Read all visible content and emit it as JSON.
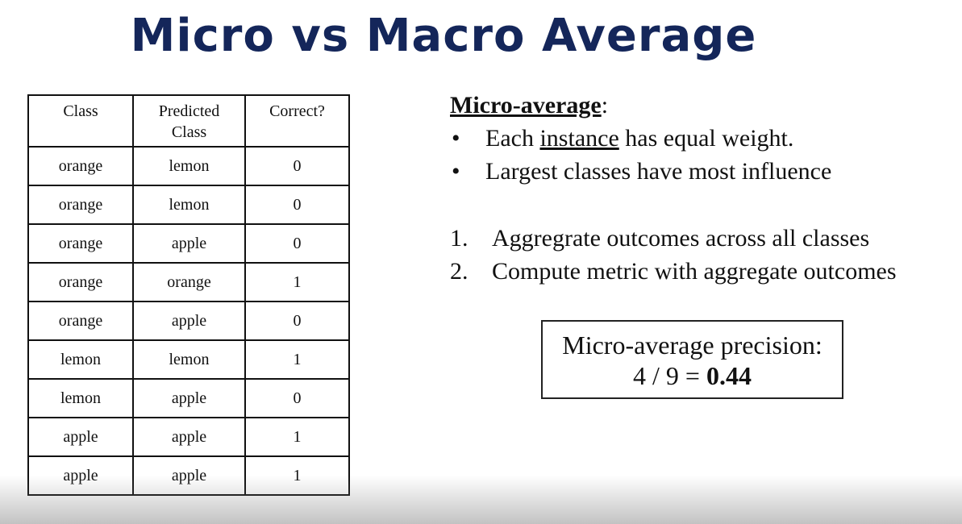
{
  "title": "Micro vs Macro Average",
  "table": {
    "headers": {
      "class_col": "Class",
      "predicted_line1": "Predicted",
      "predicted_line2": "Class",
      "correct_col": "Correct?"
    },
    "rows": [
      {
        "class": "orange",
        "predicted": "lemon",
        "correct": "0"
      },
      {
        "class": "orange",
        "predicted": "lemon",
        "correct": "0"
      },
      {
        "class": "orange",
        "predicted": "apple",
        "correct": "0"
      },
      {
        "class": "orange",
        "predicted": "orange",
        "correct": "1"
      },
      {
        "class": "orange",
        "predicted": "apple",
        "correct": "0"
      },
      {
        "class": "lemon",
        "predicted": "lemon",
        "correct": "1"
      },
      {
        "class": "lemon",
        "predicted": "apple",
        "correct": "0"
      },
      {
        "class": "apple",
        "predicted": "apple",
        "correct": "1"
      },
      {
        "class": "apple",
        "predicted": "apple",
        "correct": "1"
      }
    ]
  },
  "micro": {
    "heading": "Micro-average",
    "heading_suffix": ":",
    "bullet_char": "•",
    "bullet1_pre": "Each ",
    "bullet1_underlined": "instance",
    "bullet1_post": " has equal weight.",
    "bullet2": "Largest classes have most influence",
    "steps": [
      {
        "num": "1.",
        "text": "Aggregrate outcomes across all classes"
      },
      {
        "num": "2.",
        "text": "Compute metric with aggregate outcomes"
      }
    ]
  },
  "result": {
    "label": "Micro-average precision:",
    "formula": "4 / 9 = ",
    "value": "0.44"
  },
  "colors": {
    "title": "#14265a",
    "text": "#111111",
    "border": "#111111"
  }
}
